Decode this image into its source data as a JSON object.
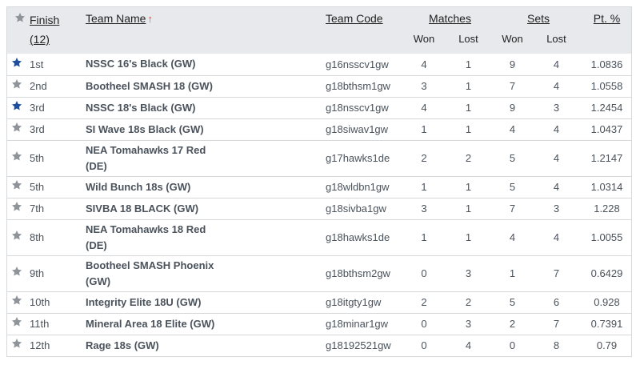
{
  "header": {
    "finish_label": "Finish",
    "finish_count": "(12)",
    "team_name_label": "Team Name",
    "sort_arrow": "↑",
    "team_code_label": "Team Code",
    "matches_label": "Matches",
    "sets_label": "Sets",
    "pt_label": "Pt. %",
    "won_label": "Won",
    "lost_label": "Lost"
  },
  "colors": {
    "star_favorite": "#1e4e9c",
    "star_default": "#8e949a",
    "header_bg": "#e7e9ec",
    "sort_arrow": "#e8472f"
  },
  "rows": [
    {
      "finish": "1st",
      "team_line1": "NSSC 16's Black (GW)",
      "team_line2": "",
      "code": "g16nsscv1gw",
      "m_won": "4",
      "m_lost": "1",
      "s_won": "9",
      "s_lost": "4",
      "pt": "1.0836",
      "favorite": true
    },
    {
      "finish": "2nd",
      "team_line1": "Bootheel SMASH 18 (GW)",
      "team_line2": "",
      "code": "g18bthsm1gw",
      "m_won": "3",
      "m_lost": "1",
      "s_won": "7",
      "s_lost": "4",
      "pt": "1.0558",
      "favorite": false
    },
    {
      "finish": "3rd",
      "team_line1": "NSSC 18's Black (GW)",
      "team_line2": "",
      "code": "g18nsscv1gw",
      "m_won": "4",
      "m_lost": "1",
      "s_won": "9",
      "s_lost": "3",
      "pt": "1.2454",
      "favorite": true
    },
    {
      "finish": "3rd",
      "team_line1": "SI Wave 18s Black (GW)",
      "team_line2": "",
      "code": "g18siwav1gw",
      "m_won": "1",
      "m_lost": "1",
      "s_won": "4",
      "s_lost": "4",
      "pt": "1.0437",
      "favorite": false
    },
    {
      "finish": "5th",
      "team_line1": "NEA Tomahawks 17 Red",
      "team_line2": "(DE)",
      "code": "g17hawks1de",
      "m_won": "2",
      "m_lost": "2",
      "s_won": "5",
      "s_lost": "4",
      "pt": "1.2147",
      "favorite": false
    },
    {
      "finish": "5th",
      "team_line1": "Wild Bunch 18s (GW)",
      "team_line2": "",
      "code": "g18wldbn1gw",
      "m_won": "1",
      "m_lost": "1",
      "s_won": "5",
      "s_lost": "4",
      "pt": "1.0314",
      "favorite": false
    },
    {
      "finish": "7th",
      "team_line1": "SIVBA 18 BLACK (GW)",
      "team_line2": "",
      "code": "g18sivba1gw",
      "m_won": "3",
      "m_lost": "1",
      "s_won": "7",
      "s_lost": "3",
      "pt": "1.228",
      "favorite": false
    },
    {
      "finish": "8th",
      "team_line1": "NEA Tomahawks 18 Red",
      "team_line2": "(DE)",
      "code": "g18hawks1de",
      "m_won": "1",
      "m_lost": "1",
      "s_won": "4",
      "s_lost": "4",
      "pt": "1.0055",
      "favorite": false
    },
    {
      "finish": "9th",
      "team_line1": "Bootheel SMASH Phoenix",
      "team_line2": "(GW)",
      "code": "g18bthsm2gw",
      "m_won": "0",
      "m_lost": "3",
      "s_won": "1",
      "s_lost": "7",
      "pt": "0.6429",
      "favorite": false
    },
    {
      "finish": "10th",
      "team_line1": "Integrity Elite 18U (GW)",
      "team_line2": "",
      "code": "g18itgty1gw",
      "m_won": "2",
      "m_lost": "2",
      "s_won": "5",
      "s_lost": "6",
      "pt": "0.928",
      "favorite": false
    },
    {
      "finish": "11th",
      "team_line1": "Mineral Area 18 Elite (GW)",
      "team_line2": "",
      "code": "g18minar1gw",
      "m_won": "0",
      "m_lost": "3",
      "s_won": "2",
      "s_lost": "7",
      "pt": "0.7391",
      "favorite": false
    },
    {
      "finish": "12th",
      "team_line1": "Rage 18s (GW)",
      "team_line2": "",
      "code": "g18192521gw",
      "m_won": "0",
      "m_lost": "4",
      "s_won": "0",
      "s_lost": "8",
      "pt": "0.79",
      "favorite": false
    }
  ]
}
